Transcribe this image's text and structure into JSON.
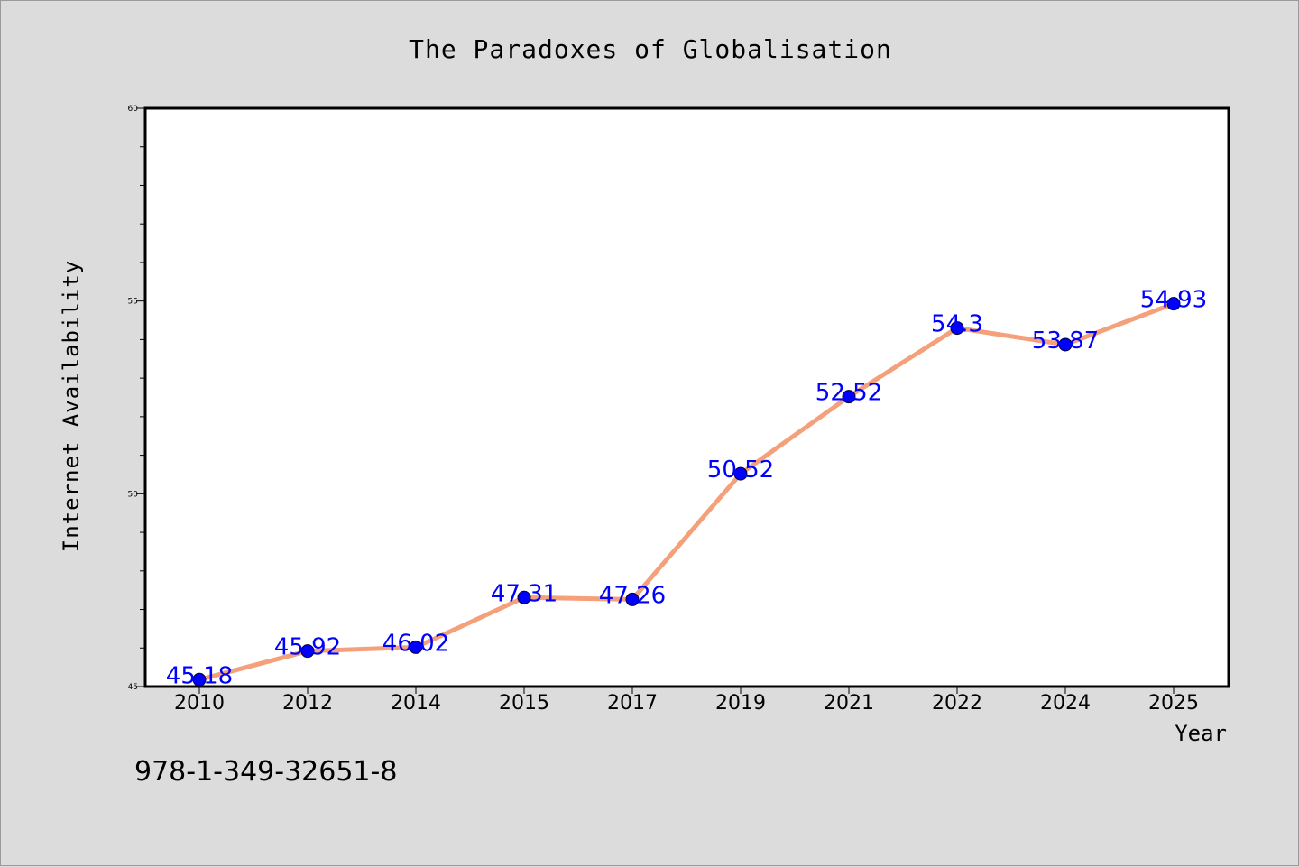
{
  "chart_data": {
    "type": "line",
    "title": "The Paradoxes of Globalisation",
    "xlabel": "Year",
    "ylabel": "Internet Availability",
    "categories": [
      "2010",
      "2012",
      "2014",
      "2015",
      "2017",
      "2019",
      "2021",
      "2022",
      "2024",
      "2025"
    ],
    "series": [
      {
        "values": [
          45.18,
          45.92,
          46.02,
          47.31,
          47.26,
          50.52,
          52.52,
          54.3,
          53.87,
          54.93
        ],
        "data_labels": [
          "45.18",
          "45.92",
          "46.02",
          "47.31",
          "47.26",
          "50.52",
          "52.52",
          "54.3",
          "53.87",
          "54.93"
        ],
        "line_color": "#f4a07a",
        "marker_color": "#0000ff"
      }
    ],
    "ylim": [
      45,
      60
    ],
    "y_ticks": [
      "45",
      "50",
      "55",
      "60"
    ],
    "grid": false,
    "label_color": "#0000ff",
    "background": "#dcdcdc",
    "plot_background": "#ffffff"
  },
  "footer_text": "978-1-349-32651-8"
}
